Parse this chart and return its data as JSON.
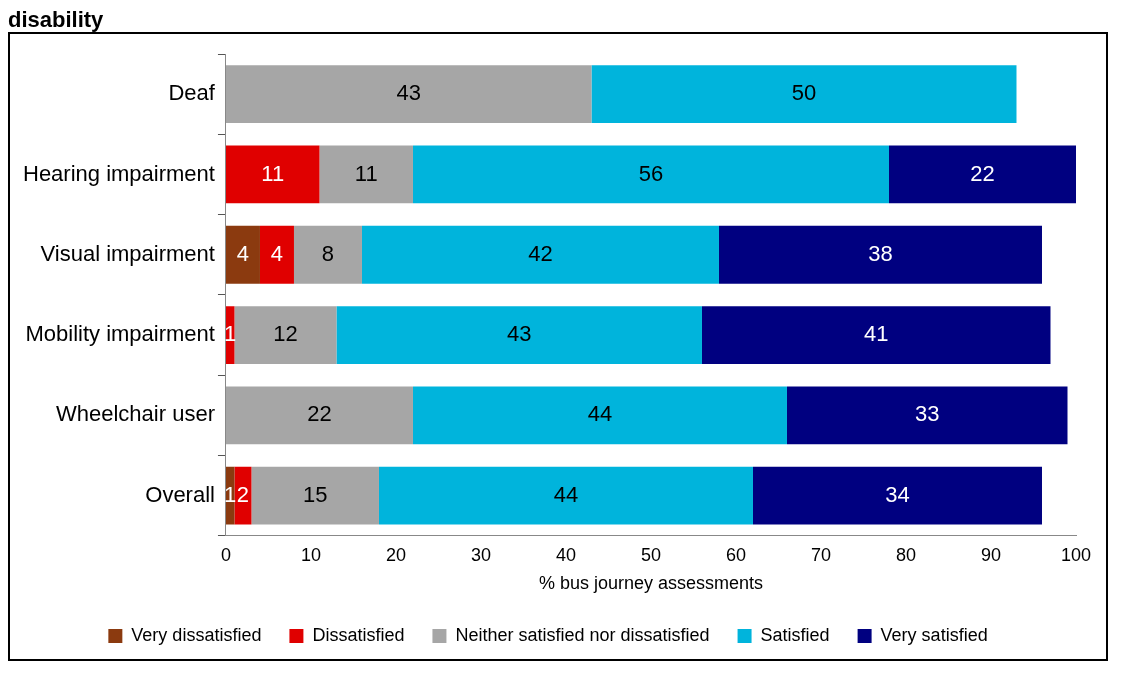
{
  "chart_data": {
    "type": "bar",
    "title": "disability",
    "orientation": "horizontal",
    "stacked": true,
    "categories": [
      "Deaf",
      "Hearing impairment",
      "Visual impairment",
      "Mobility impairment",
      "Wheelchair user",
      "Overall"
    ],
    "series": [
      {
        "name": "Very dissatisfied",
        "color": "#8b3a0f",
        "values": [
          null,
          null,
          4,
          null,
          null,
          1
        ]
      },
      {
        "name": "Dissatisfied",
        "color": "#e00000",
        "values": [
          null,
          11,
          4,
          1,
          null,
          2
        ]
      },
      {
        "name": "Neither satisfied nor dissatisfied",
        "color": "#a6a6a6",
        "values": [
          43,
          11,
          8,
          12,
          22,
          15
        ]
      },
      {
        "name": "Satisfied",
        "color": "#00b4dc",
        "values": [
          50,
          56,
          42,
          43,
          44,
          44
        ]
      },
      {
        "name": "Very satisfied",
        "color": "#000080",
        "values": [
          null,
          22,
          38,
          41,
          33,
          34
        ]
      }
    ],
    "xlabel": "% bus journey assessments",
    "xlim": [
      0,
      100
    ],
    "xticks": [
      0,
      10,
      20,
      30,
      40,
      50,
      60,
      70,
      80,
      90,
      100
    ],
    "data_labels": true,
    "grid": false,
    "legend": "bottom"
  }
}
